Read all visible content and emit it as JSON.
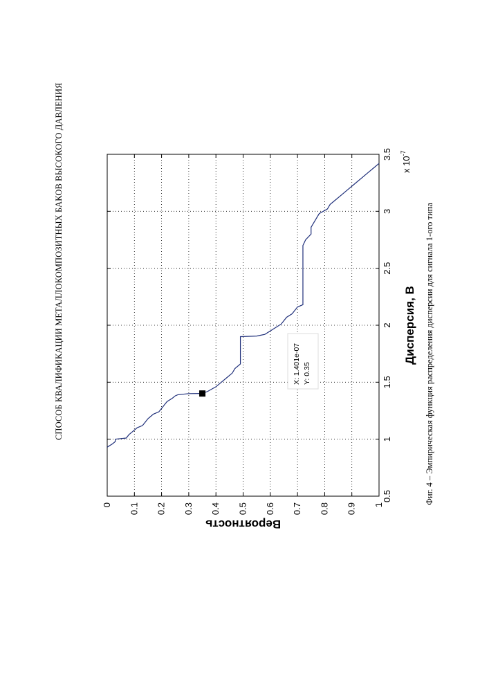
{
  "page": {
    "header": "СПОСОБ КВАЛИФИКАЦИИ МЕТАЛЛОКОМПОЗИТНЫХ БАКОВ ВЫСОКОГО ДАВЛЕНИЯ",
    "caption": "Фиг. 4 – Эмпирическая функция распределения дисперсии для сигнала 1-ого типа"
  },
  "chart_data": {
    "type": "line",
    "title": "",
    "xlabel": "Дисперсия, В",
    "ylabel": "Вероятность",
    "x_exponent_label": "x 10",
    "x_exponent_power": "-7",
    "xlim": [
      0.5,
      3.5
    ],
    "ylim": [
      0,
      1
    ],
    "x_ticks": [
      "0.5",
      "1",
      "1.5",
      "2",
      "2.5",
      "3",
      "3.5"
    ],
    "y_ticks": [
      "0",
      "0.1",
      "0.2",
      "0.3",
      "0.4",
      "0.5",
      "0.6",
      "0.7",
      "0.8",
      "0.9",
      "1"
    ],
    "grid": true,
    "line_color": "#1f2f7a",
    "series": [
      {
        "x": [
          0.93,
          0.96,
          0.98,
          1.0,
          1.01,
          1.04,
          1.06,
          1.08,
          1.1,
          1.12,
          1.15,
          1.18,
          1.2,
          1.22,
          1.24,
          1.27,
          1.3,
          1.33,
          1.36,
          1.38,
          1.39,
          1.4,
          1.401,
          1.42,
          1.46,
          1.5,
          1.54,
          1.58,
          1.62,
          1.66,
          1.7,
          1.74,
          1.78,
          1.82,
          1.86,
          1.9,
          1.905,
          1.92,
          1.95,
          1.98,
          2.01,
          2.04,
          2.07,
          2.1,
          2.13,
          2.16,
          2.18,
          2.2,
          2.3,
          2.4,
          2.5,
          2.6,
          2.7,
          2.75,
          2.8,
          2.82,
          2.86,
          2.9,
          2.94,
          2.98,
          3.02,
          3.06,
          3.1,
          3.14,
          3.18,
          3.22,
          3.26,
          3.3,
          3.34,
          3.38,
          3.42
        ],
        "y": [
          0.0,
          0.02,
          0.03,
          0.03,
          0.07,
          0.08,
          0.09,
          0.1,
          0.11,
          0.13,
          0.14,
          0.15,
          0.16,
          0.17,
          0.19,
          0.2,
          0.21,
          0.22,
          0.24,
          0.25,
          0.26,
          0.3,
          0.35,
          0.37,
          0.4,
          0.42,
          0.44,
          0.46,
          0.47,
          0.49,
          0.49,
          0.49,
          0.49,
          0.49,
          0.49,
          0.49,
          0.55,
          0.58,
          0.6,
          0.62,
          0.64,
          0.65,
          0.66,
          0.68,
          0.69,
          0.7,
          0.72,
          0.72,
          0.72,
          0.72,
          0.72,
          0.72,
          0.72,
          0.73,
          0.75,
          0.75,
          0.75,
          0.76,
          0.77,
          0.78,
          0.81,
          0.82,
          0.84,
          0.86,
          0.88,
          0.9,
          0.92,
          0.94,
          0.96,
          0.98,
          1.0
        ]
      }
    ],
    "datatip": {
      "x": 1.401,
      "y": 0.35,
      "x_text": "X: 1.401e-07",
      "y_text": "Y: 0.35"
    }
  }
}
